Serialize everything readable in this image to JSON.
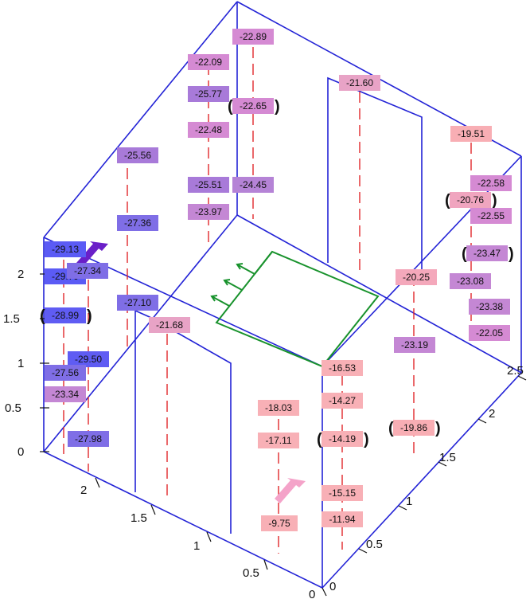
{
  "colors": {
    "box_edges": "#2323d6",
    "sensor_lines": "#e0282c",
    "panel": "#18922c",
    "arrow_cold": "#6a1fc8",
    "arrow_warm": "#f4a3c9",
    "scale_cold": "#5b5bf5",
    "scale_mid": "#c08ad0",
    "scale_warm": "#f8b0b6"
  },
  "axes": {
    "vertical_ticks": [
      "0",
      "0.5",
      "1",
      "1.5",
      "2"
    ],
    "depth_ticks": [
      "0",
      "0.5",
      "1",
      "1.5",
      "2"
    ],
    "width_ticks": [
      "0",
      "0.5",
      "1",
      "1.5",
      "2",
      "2.5"
    ]
  },
  "values": [
    {
      "text": "-22.89",
      "color": "#d58ad3"
    },
    {
      "text": "-22.09",
      "color": "#d58ad3"
    },
    {
      "text": "-25.77",
      "color": "#a87ad9"
    },
    {
      "text": "-22.65",
      "color": "#d58ad3",
      "bracketed": true
    },
    {
      "text": "-21.60",
      "color": "#e8a3c6"
    },
    {
      "text": "-22.48",
      "color": "#d58ad3"
    },
    {
      "text": "-19.51",
      "color": "#f8aeb4"
    },
    {
      "text": "-25.56",
      "color": "#a87ad9"
    },
    {
      "text": "-25.51",
      "color": "#a87ad9"
    },
    {
      "text": "-24.45",
      "color": "#b583d6"
    },
    {
      "text": "-22.58",
      "color": "#d58ad3"
    },
    {
      "text": "-23.97",
      "color": "#c487d4"
    },
    {
      "text": "-20.76",
      "color": "#f0a5bf",
      "bracketed": true
    },
    {
      "text": "-22.55",
      "color": "#d58ad3"
    },
    {
      "text": "-27.36",
      "color": "#7f6ee6"
    },
    {
      "text": "-29.13",
      "color": "#5b5bf5"
    },
    {
      "text": "-23.47",
      "color": "#c487d4",
      "bracketed": true
    },
    {
      "text": "-29.79",
      "color": "#5b5bf5"
    },
    {
      "text": "-27.34",
      "color": "#7f6ee6"
    },
    {
      "text": "-20.25",
      "color": "#f4a8bb"
    },
    {
      "text": "-23.08",
      "color": "#c487d4"
    },
    {
      "text": "-27.10",
      "color": "#7f6ee6"
    },
    {
      "text": "-28.99",
      "color": "#5f5cf3",
      "bracketed": true
    },
    {
      "text": "-21.68",
      "color": "#e8a3c6"
    },
    {
      "text": "-23.38",
      "color": "#c487d4"
    },
    {
      "text": "-22.05",
      "color": "#d58ad3"
    },
    {
      "text": "-23.19",
      "color": "#c487d4"
    },
    {
      "text": "-29.50",
      "color": "#5f5cf3"
    },
    {
      "text": "-27.56",
      "color": "#7f6ee6"
    },
    {
      "text": "-16.53",
      "color": "#f8b0b6"
    },
    {
      "text": "-23.34",
      "color": "#c487d4"
    },
    {
      "text": "-14.27",
      "color": "#f8b0b6"
    },
    {
      "text": "-18.03",
      "color": "#f8b0b6"
    },
    {
      "text": "-27.98",
      "color": "#7f6ee6"
    },
    {
      "text": "-17.11",
      "color": "#f8b0b6"
    },
    {
      "text": "-14.19",
      "color": "#f8b0b6",
      "bracketed": true
    },
    {
      "text": "-19.86",
      "color": "#f8aeb4",
      "bracketed": true
    },
    {
      "text": "-15.15",
      "color": "#f8b0b6"
    },
    {
      "text": "-11.94",
      "color": "#f8b0b6"
    },
    {
      "text": "-9.75",
      "color": "#f8b0b6"
    }
  ]
}
